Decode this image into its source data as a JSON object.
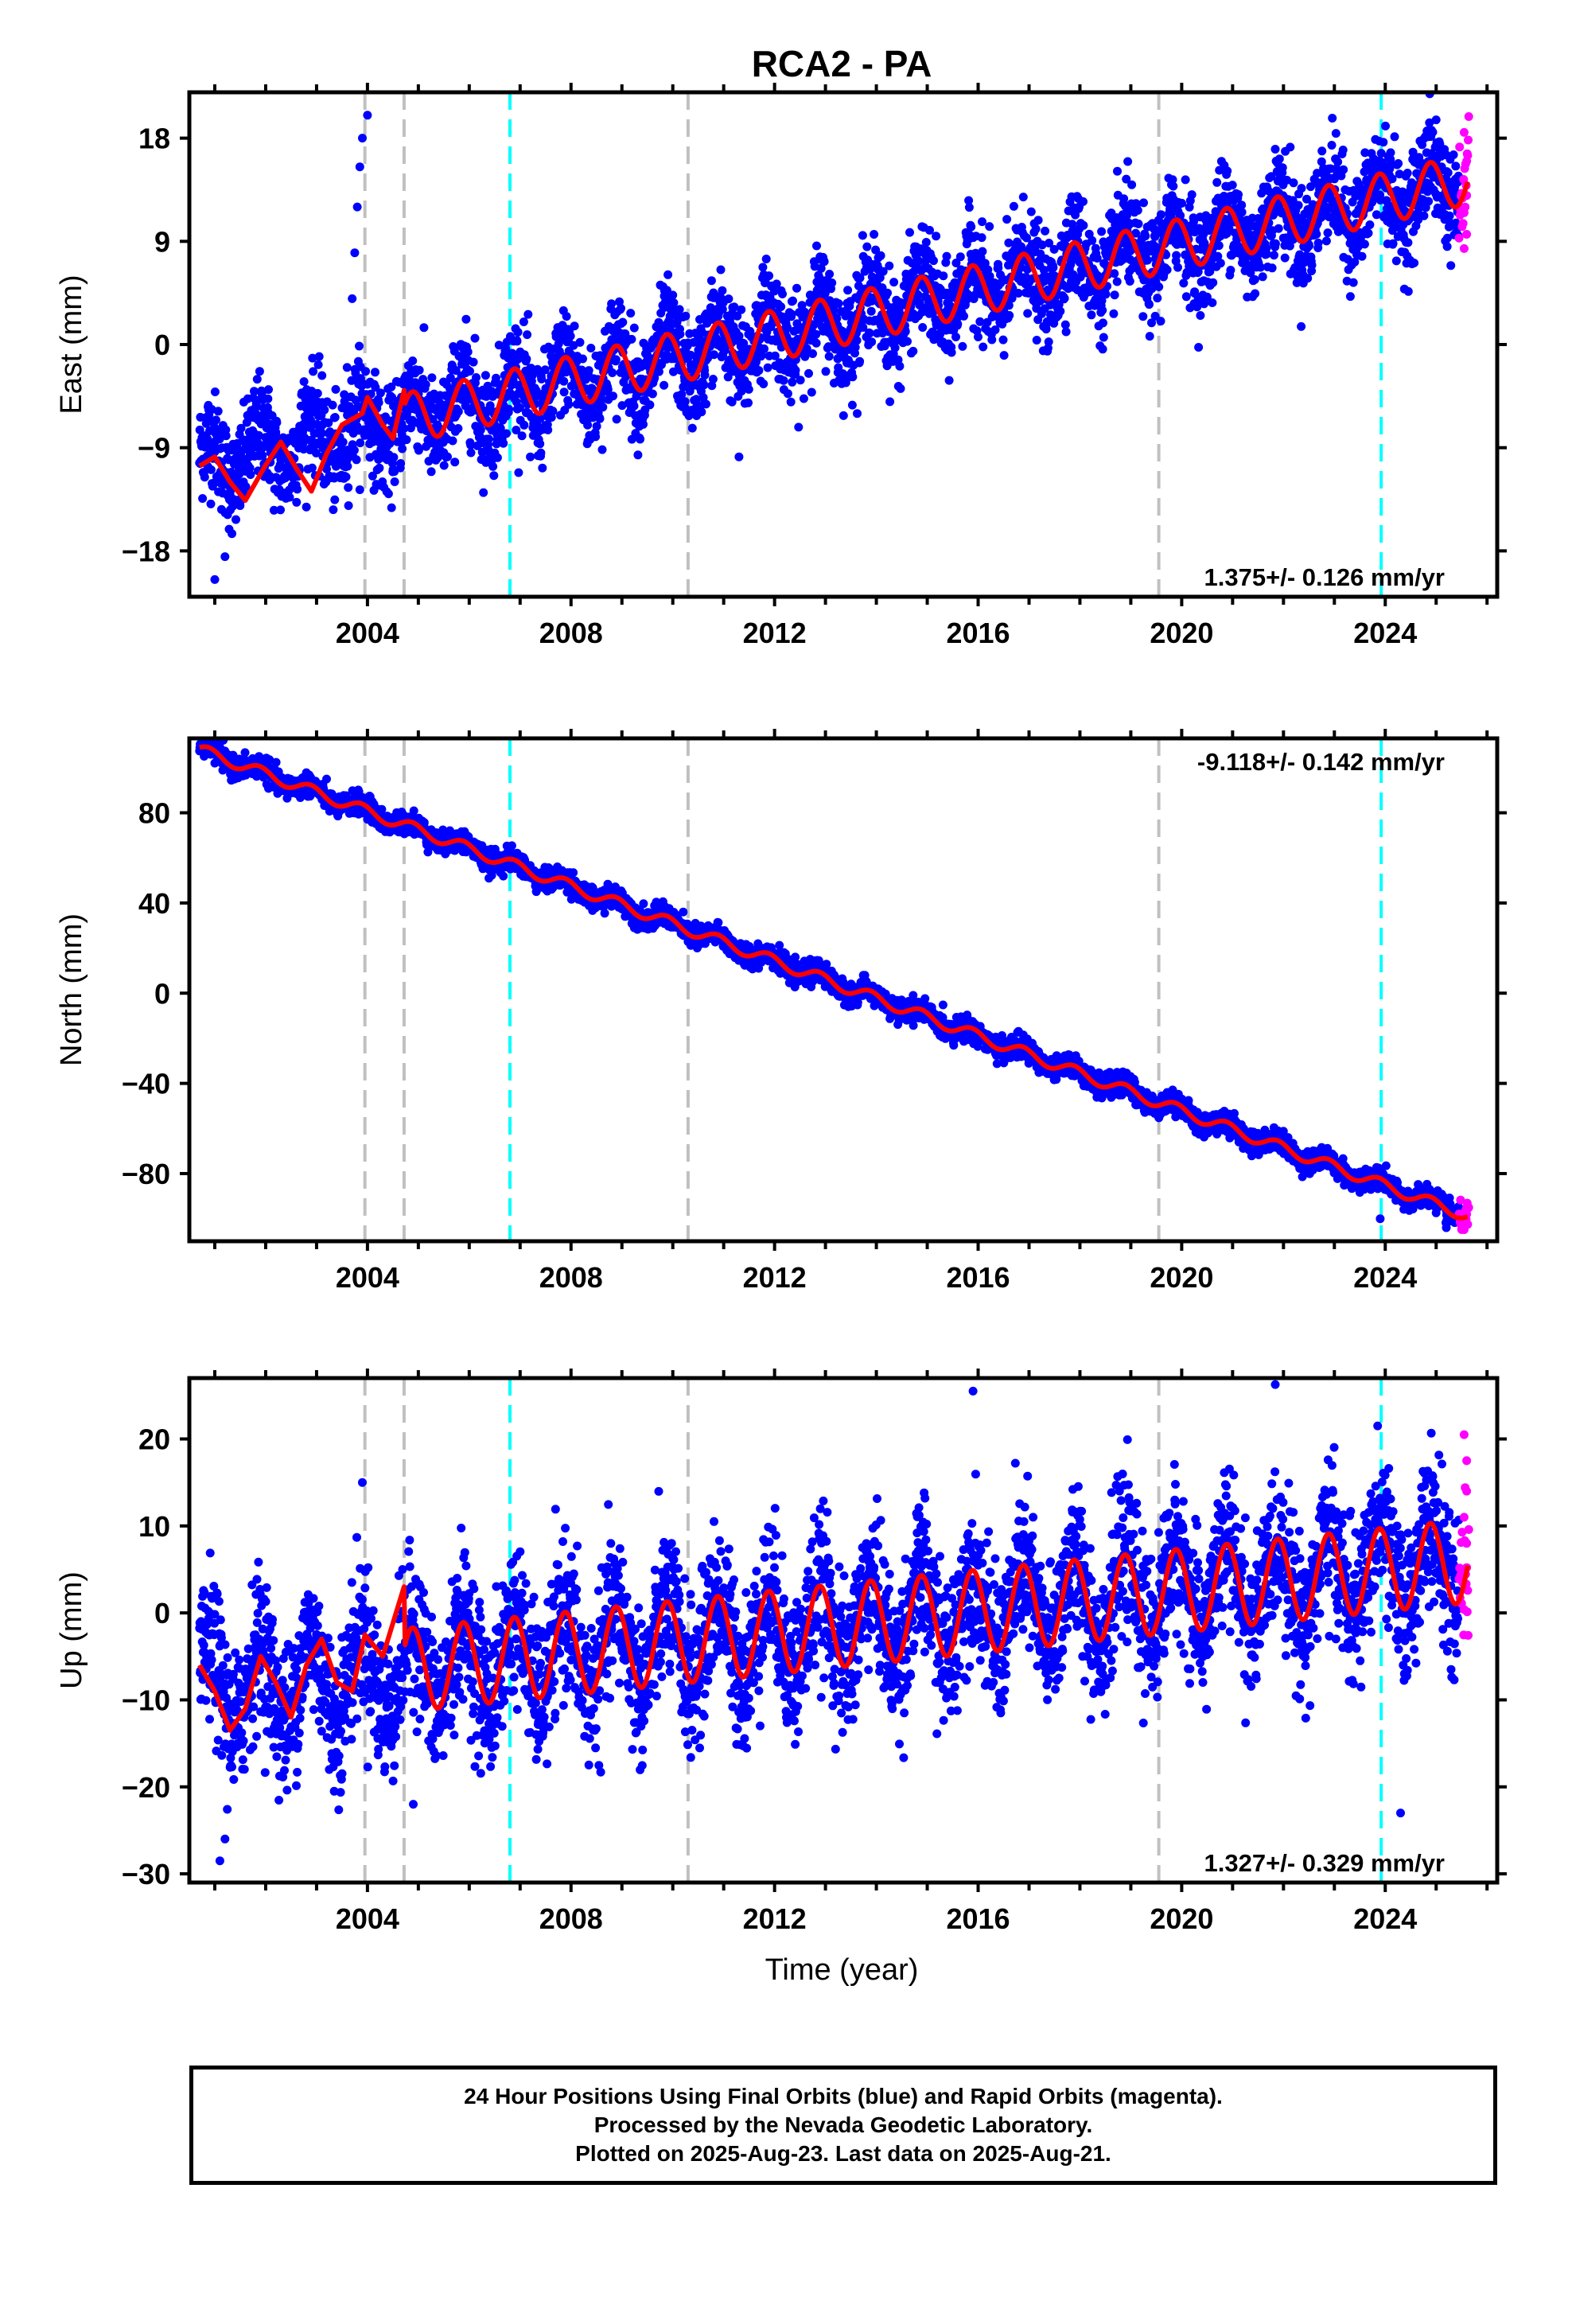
{
  "chart_data": {
    "title": "RCA2 - PA",
    "type": "scatter",
    "xlabel": "Time (year)",
    "xlim": [
      2000.5,
      2026.2
    ],
    "xticks": [
      2004,
      2008,
      2012,
      2016,
      2020,
      2024
    ],
    "vlines_gray": [
      2003.95,
      2004.72,
      2010.3,
      2019.55
    ],
    "vlines_cyan": [
      2006.8,
      2023.92
    ],
    "colors": {
      "final": "#0000ff",
      "rapid": "#ff00ff",
      "model": "#ff0000",
      "gray_line": "#c0c0c0",
      "cyan_line": "#00ffff"
    },
    "panels": [
      {
        "name": "East",
        "ylabel": "East (mm)",
        "ylim": [
          -22,
          22
        ],
        "yticks": [
          18,
          9,
          0,
          -9,
          -18
        ],
        "ytick_labels": [
          "18",
          "9",
          "0",
          "−9",
          "−18"
        ],
        "rate_label": "1.375+/- 0.126 mm/yr",
        "rate_pos": "bottom-right",
        "trend": {
          "x0": 2000.7,
          "y0": -10.5,
          "slope": 1.0,
          "amp": 2.2,
          "scatter": 2.2
        },
        "model_points": [
          [
            2000.7,
            -10.6
          ],
          [
            2001.0,
            -9.8
          ],
          [
            2001.3,
            -12.0
          ],
          [
            2001.6,
            -13.6
          ],
          [
            2002.0,
            -10.5
          ],
          [
            2002.3,
            -8.5
          ],
          [
            2002.6,
            -10.8
          ],
          [
            2002.9,
            -12.8
          ],
          [
            2003.2,
            -9.5
          ],
          [
            2003.5,
            -7.0
          ],
          [
            2003.9,
            -6.0
          ],
          [
            2004.0,
            -4.6
          ],
          [
            2004.3,
            -7.0
          ],
          [
            2004.5,
            -8.2
          ],
          [
            2004.72,
            -4.0
          ]
        ],
        "points": [
          [
            2003.6,
            -2.0
          ],
          [
            2003.7,
            4.0
          ],
          [
            2003.8,
            12.0
          ],
          [
            2003.9,
            18.0
          ],
          [
            2004.0,
            20.0
          ],
          [
            2003.85,
            15.5
          ],
          [
            2003.75,
            8.0
          ],
          [
            2001.0,
            -20.5
          ],
          [
            2001.2,
            -18.5
          ],
          [
            2007.2,
            -9.8
          ],
          [
            2011.3,
            -9.8
          ]
        ],
        "rapid_points": [
          [
            2025.55,
            18.5
          ],
          [
            2025.6,
            16.0
          ],
          [
            2025.6,
            13.0
          ],
          [
            2025.55,
            11.5
          ]
        ]
      },
      {
        "name": "North",
        "ylabel": "North (mm)",
        "ylim": [
          -110,
          113
        ],
        "yticks": [
          80,
          40,
          0,
          -40,
          -80
        ],
        "ytick_labels": [
          "80",
          "40",
          "0",
          "−40",
          "−80"
        ],
        "rate_label": "-9.118+/- 0.142 mm/yr",
        "rate_pos": "top-right",
        "trend": {
          "x0": 2000.7,
          "y0": 108.0,
          "slope": -8.3,
          "amp": 2.5,
          "scatter": 2.4
        },
        "model_points": [],
        "points": [
          [
            2019.2,
            -43.0
          ],
          [
            2023.9,
            -100.0
          ],
          [
            2025.2,
            -104.0
          ]
        ],
        "rapid_points": [
          [
            2025.6,
            -95.0
          ],
          [
            2025.6,
            -98.0
          ],
          [
            2025.55,
            -100.0
          ]
        ]
      },
      {
        "name": "Up",
        "ylabel": "Up (mm)",
        "ylim": [
          -31,
          27
        ],
        "yticks": [
          20,
          10,
          0,
          -10,
          -20,
          -30
        ],
        "ytick_labels": [
          "20",
          "10",
          "0",
          "−10",
          "−20",
          "−30"
        ],
        "rate_label": "1.327+/- 0.329 mm/yr",
        "rate_pos": "bottom-right",
        "trend": {
          "x0": 2000.7,
          "y0": -9.0,
          "slope": 0.6,
          "amp": 4.8,
          "scatter": 4.2
        },
        "model_points": [
          [
            2000.7,
            -6.0
          ],
          [
            2001.0,
            -9.0
          ],
          [
            2001.3,
            -13.5
          ],
          [
            2001.6,
            -11.0
          ],
          [
            2001.9,
            -5.0
          ],
          [
            2002.2,
            -8.0
          ],
          [
            2002.5,
            -12.0
          ],
          [
            2002.8,
            -6.0
          ],
          [
            2003.1,
            -3.0
          ],
          [
            2003.4,
            -8.0
          ],
          [
            2003.7,
            -9.0
          ],
          [
            2003.95,
            -2.5
          ],
          [
            2004.3,
            -5.0
          ],
          [
            2004.72,
            3.0
          ]
        ],
        "points": [
          [
            2015.9,
            25.5
          ],
          [
            2003.9,
            15.0
          ],
          [
            2001.1,
            -28.5
          ],
          [
            2001.2,
            -26.0
          ],
          [
            2004.9,
            -22.0
          ],
          [
            2023.85,
            21.5
          ],
          [
            2024.3,
            -23.0
          ]
        ],
        "rapid_points": [
          [
            2025.55,
            20.5
          ],
          [
            2025.6,
            17.5
          ],
          [
            2025.6,
            14.0
          ],
          [
            2025.55,
            11.0
          ],
          [
            2025.6,
            8.0
          ]
        ]
      }
    ]
  },
  "footer": {
    "line1": "24 Hour Positions Using Final Orbits (blue) and Rapid Orbits (magenta).",
    "line2": "Processed by the Nevada Geodetic Laboratory.",
    "line3": "Plotted on 2025-Aug-23. Last data on 2025-Aug-21."
  }
}
